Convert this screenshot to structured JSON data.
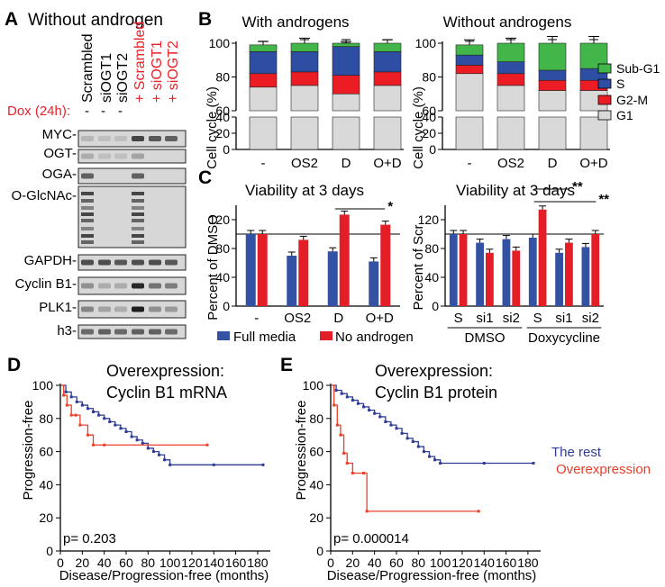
{
  "panelA": {
    "letter": "A",
    "title": "Without androgen",
    "dox_label": "Dox (24h):",
    "lane_headers": [
      "Scrambled",
      "siOGT1",
      "siOGT2",
      "+ Scrambled",
      "+ siOGT1",
      "+ siOGT2"
    ],
    "lane_marks": [
      "-",
      "-",
      "-"
    ],
    "blot_labels": [
      "MYC-",
      "OGT-",
      "OGA-",
      "O-GlcNAc-",
      "GAPDH-",
      "Cyclin B1-",
      "PLK1-",
      "h3-"
    ],
    "colors": {
      "dox": "#e8202a",
      "text": "#000000"
    }
  },
  "panelB": {
    "letter": "B",
    "colors": {
      "sub_g1": "#43b649",
      "s": "#2e4ea3",
      "g2m": "#ec1c24",
      "g1": "#d9d9d9"
    },
    "legend": [
      "Sub-G1",
      "S",
      "G2-M",
      "G1"
    ],
    "chart_data": [
      {
        "type": "bar",
        "title": "With androgens",
        "ylabel": "Cell cycle (%)",
        "categories": [
          "-",
          "OS2",
          "D",
          "O+D"
        ],
        "stacked": true,
        "y_ticks_upper": [
          60,
          80,
          100
        ],
        "y_ticks_lower": [
          0,
          20,
          40
        ],
        "series": [
          {
            "name": "G1",
            "values": [
              74,
              75,
              70,
              75
            ]
          },
          {
            "name": "G2-M",
            "values": [
              8,
              8,
              11,
              8
            ]
          },
          {
            "name": "S",
            "values": [
              13,
              12,
              17,
              12
            ]
          },
          {
            "name": "Sub-G1",
            "values": [
              4,
              5,
              2,
              5
            ]
          }
        ],
        "error_tops": [
          101,
          103,
          101,
          102
        ]
      },
      {
        "type": "bar",
        "title": "Without androgens",
        "ylabel": "Cell cycle (%)",
        "categories": [
          "-",
          "OS2",
          "D",
          "O+D"
        ],
        "stacked": true,
        "y_ticks_upper": [
          60,
          80,
          100
        ],
        "y_ticks_lower": [
          0,
          20,
          40
        ],
        "series": [
          {
            "name": "G1",
            "values": [
              82,
              75,
              72,
              72
            ]
          },
          {
            "name": "G2-M",
            "values": [
              5,
              7,
              6,
              6
            ]
          },
          {
            "name": "S",
            "values": [
              6,
              7,
              6,
              7
            ]
          },
          {
            "name": "Sub-G1",
            "values": [
              6,
              11,
              16,
              15
            ]
          }
        ],
        "error_tops": [
          102,
          103,
          104,
          104
        ]
      }
    ]
  },
  "panelC": {
    "letter": "C",
    "colors": {
      "full_media": "#3452a4",
      "no_androgen": "#e31e26"
    },
    "legend": [
      "Full media",
      "No androgen"
    ],
    "chart_data": [
      {
        "type": "bar",
        "title": "Viability at 3 days",
        "ylabel": "Percent of DMSO",
        "categories": [
          "-",
          "OS2",
          "D",
          "O+D"
        ],
        "ylim": [
          0,
          140
        ],
        "y_ticks": [
          0,
          40,
          80,
          120
        ],
        "reference_line": 100,
        "series": [
          {
            "name": "Full media",
            "values": [
              100,
              70,
              76,
              62
            ]
          },
          {
            "name": "No androgen",
            "values": [
              100,
              92,
              127,
              113
            ]
          }
        ],
        "significance": [
          {
            "label": "*",
            "from": "D",
            "to": "O+D"
          }
        ]
      },
      {
        "type": "bar",
        "title": "Viability at 3 days",
        "ylabel": "Percent of Scr",
        "categories": [
          "S",
          "si1",
          "si2",
          "S",
          "si1",
          "si2"
        ],
        "groups": [
          "DMSO",
          "Doxycycline"
        ],
        "ylim": [
          0,
          140
        ],
        "y_ticks": [
          0,
          40,
          80,
          120
        ],
        "reference_line": 100,
        "series": [
          {
            "name": "Full media",
            "values": [
              100,
              88,
              93,
              95,
              74,
              82
            ]
          },
          {
            "name": "No androgen",
            "values": [
              100,
              74,
              77,
              134,
              88,
              100
            ]
          }
        ],
        "significance": [
          {
            "label": "**",
            "from": "S",
            "to": "si1"
          },
          {
            "label": "**",
            "from": "S",
            "to": "si2"
          }
        ]
      }
    ]
  },
  "panelD": {
    "letter": "D",
    "colors": {
      "rest": "#2e3c96",
      "over": "#e8402a"
    },
    "chart_data": {
      "type": "line",
      "title": "Overexpression:",
      "subtitle": "Cyclin B1 mRNA",
      "ylabel": "Progression-free",
      "xlabel": "Disease/Progression-free (months)",
      "x_ticks": [
        0,
        20,
        40,
        60,
        80,
        100,
        120,
        140,
        160,
        180
      ],
      "y_ticks": [
        0,
        20,
        40,
        60,
        80,
        100
      ],
      "xlim": [
        0,
        185
      ],
      "ylim": [
        0,
        100
      ],
      "pvalue": "p= 0.203",
      "series": [
        {
          "name": "The rest",
          "x": [
            0,
            5,
            10,
            15,
            20,
            25,
            30,
            35,
            40,
            45,
            50,
            55,
            60,
            65,
            70,
            75,
            80,
            85,
            90,
            95,
            100,
            140,
            185
          ],
          "y": [
            100,
            96,
            93,
            90,
            88,
            86,
            84,
            82,
            80,
            78,
            76,
            74,
            72,
            69,
            67,
            65,
            62,
            60,
            58,
            55,
            52,
            52,
            52
          ]
        },
        {
          "name": "Overexpression",
          "x": [
            0,
            3,
            6,
            10,
            14,
            18,
            25,
            30,
            40,
            134
          ],
          "y": [
            100,
            94,
            88,
            82,
            82,
            76,
            70,
            64,
            64,
            64
          ]
        }
      ]
    }
  },
  "panelE": {
    "letter": "E",
    "colors": {
      "rest": "#2e3c96",
      "over": "#e8402a"
    },
    "chart_data": {
      "type": "line",
      "title": "Overexpression:",
      "subtitle": "Cyclin B1 protein",
      "ylabel": "Progression-free",
      "xlabel": "Disease/Progression-free (months)",
      "x_ticks": [
        0,
        20,
        40,
        60,
        80,
        100,
        120,
        140,
        160,
        180
      ],
      "y_ticks": [
        0,
        20,
        40,
        60,
        80,
        100
      ],
      "xlim": [
        0,
        185
      ],
      "ylim": [
        0,
        100
      ],
      "pvalue": "p= 0.000014",
      "legend": [
        "The rest",
        "Overexpression"
      ],
      "series": [
        {
          "name": "The rest",
          "x": [
            0,
            5,
            10,
            15,
            20,
            25,
            30,
            35,
            40,
            45,
            50,
            55,
            60,
            65,
            70,
            75,
            80,
            85,
            90,
            95,
            100,
            140,
            185
          ],
          "y": [
            100,
            97,
            95,
            93,
            91,
            89,
            87,
            85,
            83,
            81,
            78,
            76,
            74,
            71,
            68,
            66,
            63,
            60,
            57,
            55,
            53,
            53,
            53
          ]
        },
        {
          "name": "Overexpression",
          "x": [
            0,
            3,
            6,
            9,
            12,
            15,
            20,
            30,
            33,
            135
          ],
          "y": [
            100,
            88,
            76,
            70,
            59,
            53,
            47,
            47,
            24,
            24
          ]
        }
      ]
    }
  }
}
